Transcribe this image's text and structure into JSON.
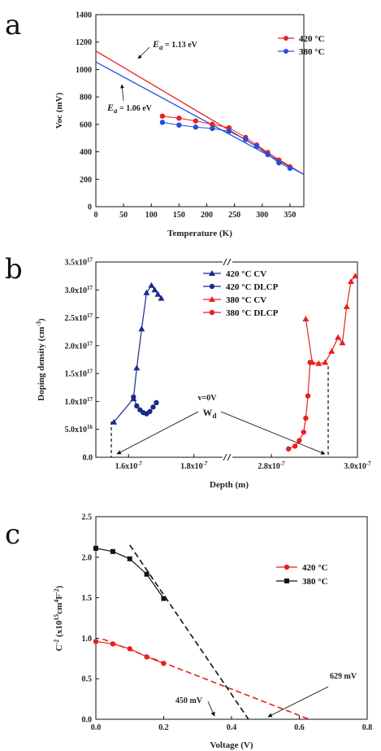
{
  "panels": {
    "a": "a",
    "b": "b",
    "c": "c"
  },
  "chart_data": [
    {
      "id": "a",
      "type": "line",
      "xlabel": "Temperature (K)",
      "ylabel": "Voc (mV)",
      "xlim": [
        0,
        375
      ],
      "ylim": [
        0,
        1400
      ],
      "xticks": [
        "0",
        "50",
        "100",
        "150",
        "200",
        "250",
        "300",
        "350"
      ],
      "yticks": [
        "0",
        "200",
        "400",
        "600",
        "800",
        "1000",
        "1200",
        "1400"
      ],
      "series": [
        {
          "name": "420 °C",
          "color": "#e82020",
          "marker": "circle",
          "x": [
            120,
            150,
            180,
            210,
            240,
            270,
            290,
            310,
            330,
            350
          ],
          "y": [
            660,
            645,
            625,
            600,
            575,
            505,
            450,
            395,
            340,
            290
          ]
        },
        {
          "name": "380 °C",
          "color": "#2050e0",
          "marker": "circle",
          "x": [
            120,
            150,
            180,
            210,
            240,
            270,
            290,
            310,
            330,
            350
          ],
          "y": [
            615,
            595,
            580,
            570,
            550,
            490,
            440,
            380,
            320,
            280
          ]
        }
      ],
      "fits": [
        {
          "color": "#e82020",
          "x": [
            0,
            375
          ],
          "y": [
            1135,
            235
          ]
        },
        {
          "color": "#2050e0",
          "x": [
            0,
            375
          ],
          "y": [
            1055,
            235
          ]
        }
      ],
      "annotations": [
        {
          "prefix": "E",
          "sub": "a",
          "value": " = 1.13 eV"
        },
        {
          "prefix": "E",
          "sub": "a",
          "value": " = 1.06 eV"
        }
      ]
    },
    {
      "id": "b",
      "type": "line",
      "xlabel": "Depth (m)",
      "ylabel": "Doping density  (cm",
      "ylabel_sup": "-3",
      "ylabel_end": ")",
      "ylim": [
        0,
        3.5
      ],
      "yticks": [
        "0.0",
        "5.0x10",
        "1.0x10",
        "1.5x10",
        "2.0x10",
        "2.5x10",
        "3.0x10",
        "3.5x10"
      ],
      "ytick_sups": [
        "",
        "16",
        "17",
        "17",
        "17",
        "17",
        "17",
        "17"
      ],
      "xticks": [
        "1.6x10",
        "1.8x10",
        "2.8x10",
        "3.0x10"
      ],
      "xtick_sup": "-7",
      "series": [
        {
          "name": "420 °C CV",
          "color": "#1a2a8a",
          "marker": "triangle",
          "x": [
            1.555,
            1.615,
            1.625,
            1.64,
            1.655,
            1.67,
            1.68,
            1.69,
            1.7
          ],
          "y": [
            0.63,
            1.05,
            1.6,
            2.3,
            2.95,
            3.08,
            3.0,
            2.92,
            2.85
          ]
        },
        {
          "name": "420 °C DLCP",
          "color": "#1a2a8a",
          "marker": "circle",
          "x": [
            1.615,
            1.625,
            1.635,
            1.645,
            1.655,
            1.665,
            1.675,
            1.685
          ],
          "y": [
            1.08,
            0.92,
            0.85,
            0.8,
            0.78,
            0.82,
            0.9,
            0.98
          ]
        },
        {
          "name": "380 °C CV",
          "color": "#e82020",
          "marker": "triangle",
          "x": [
            2.88,
            2.895,
            2.91,
            2.925,
            2.94,
            2.955,
            2.965,
            2.975,
            2.985,
            2.995
          ],
          "y": [
            2.48,
            1.7,
            1.68,
            1.7,
            1.9,
            2.15,
            2.05,
            2.7,
            3.15,
            3.25
          ]
        },
        {
          "name": "380 °C DLCP",
          "color": "#e82020",
          "marker": "circle",
          "x": [
            2.84,
            2.855,
            2.865,
            2.875,
            2.88,
            2.885,
            2.89
          ],
          "y": [
            0.15,
            0.2,
            0.3,
            0.45,
            0.7,
            1.1,
            1.7
          ]
        }
      ],
      "annotations": [
        {
          "text": "v=0V"
        },
        {
          "text": "W",
          "sub": "d"
        }
      ]
    },
    {
      "id": "c",
      "type": "line",
      "xlabel": "Voltage (V)",
      "ylabel": "C",
      "ylabel_sup1": "-2",
      "ylabel_mid": " (x10",
      "ylabel_sup2": "15",
      "ylabel_mid2": "cm",
      "ylabel_sup3": "4",
      "ylabel_mid3": "F",
      "ylabel_sup4": "-2",
      "ylabel_end": ")",
      "xlim": [
        0,
        0.8
      ],
      "ylim": [
        0,
        2.5
      ],
      "xticks": [
        "0.0",
        "0.2",
        "0.4",
        "0.6",
        "0.8"
      ],
      "yticks": [
        "0.0",
        "0.5",
        "1.0",
        "1.5",
        "2.0",
        "2.5"
      ],
      "series": [
        {
          "name": "420 °C",
          "color": "#e82020",
          "marker": "circle",
          "x": [
            0.0,
            0.05,
            0.1,
            0.15,
            0.2
          ],
          "y": [
            0.96,
            0.93,
            0.87,
            0.77,
            0.69
          ]
        },
        {
          "name": "380 °C",
          "color": "#111111",
          "marker": "square",
          "x": [
            0.0,
            0.05,
            0.1,
            0.15,
            0.2
          ],
          "y": [
            2.11,
            2.07,
            1.98,
            1.79,
            1.49
          ]
        }
      ],
      "fits": [
        {
          "color": "#e82020",
          "x": [
            0.02,
            0.629
          ],
          "y": [
            0.99,
            0.0
          ]
        },
        {
          "color": "#111111",
          "x": [
            0.1,
            0.45
          ],
          "y": [
            2.15,
            0.0
          ]
        }
      ],
      "annotations": [
        {
          "text": "450 mV"
        },
        {
          "text": "629 mV"
        }
      ]
    }
  ]
}
